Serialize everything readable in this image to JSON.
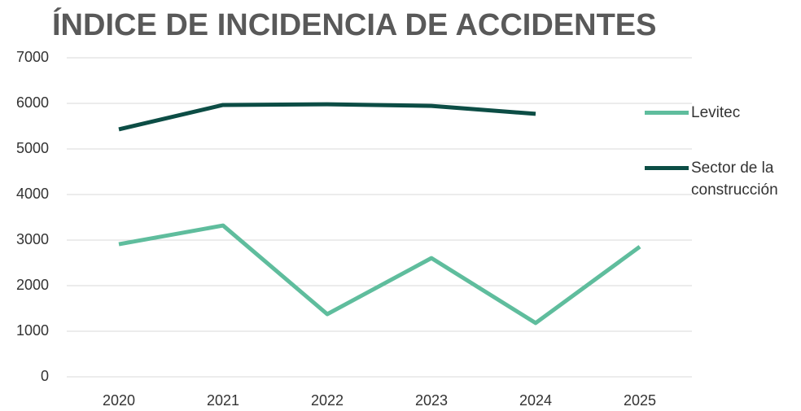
{
  "chart_data": {
    "type": "line",
    "title": "ÍNDICE DE INCIDENCIA DE ACCIDENTES",
    "categories": [
      "2020",
      "2021",
      "2022",
      "2023",
      "2024",
      "2025"
    ],
    "series": [
      {
        "name": "Levitec",
        "color": "#5fbd9d",
        "values": [
          2910,
          3320,
          1375,
          2605,
          1180,
          2855
        ]
      },
      {
        "name": "Sector de la construcción",
        "color": "#0c4d45",
        "values": [
          5430,
          5965,
          5980,
          5945,
          5770,
          null
        ]
      }
    ],
    "ylim": [
      0,
      7000
    ],
    "yticks": [
      0,
      1000,
      2000,
      3000,
      4000,
      5000,
      6000,
      7000
    ],
    "grid": true,
    "legend": "right"
  }
}
